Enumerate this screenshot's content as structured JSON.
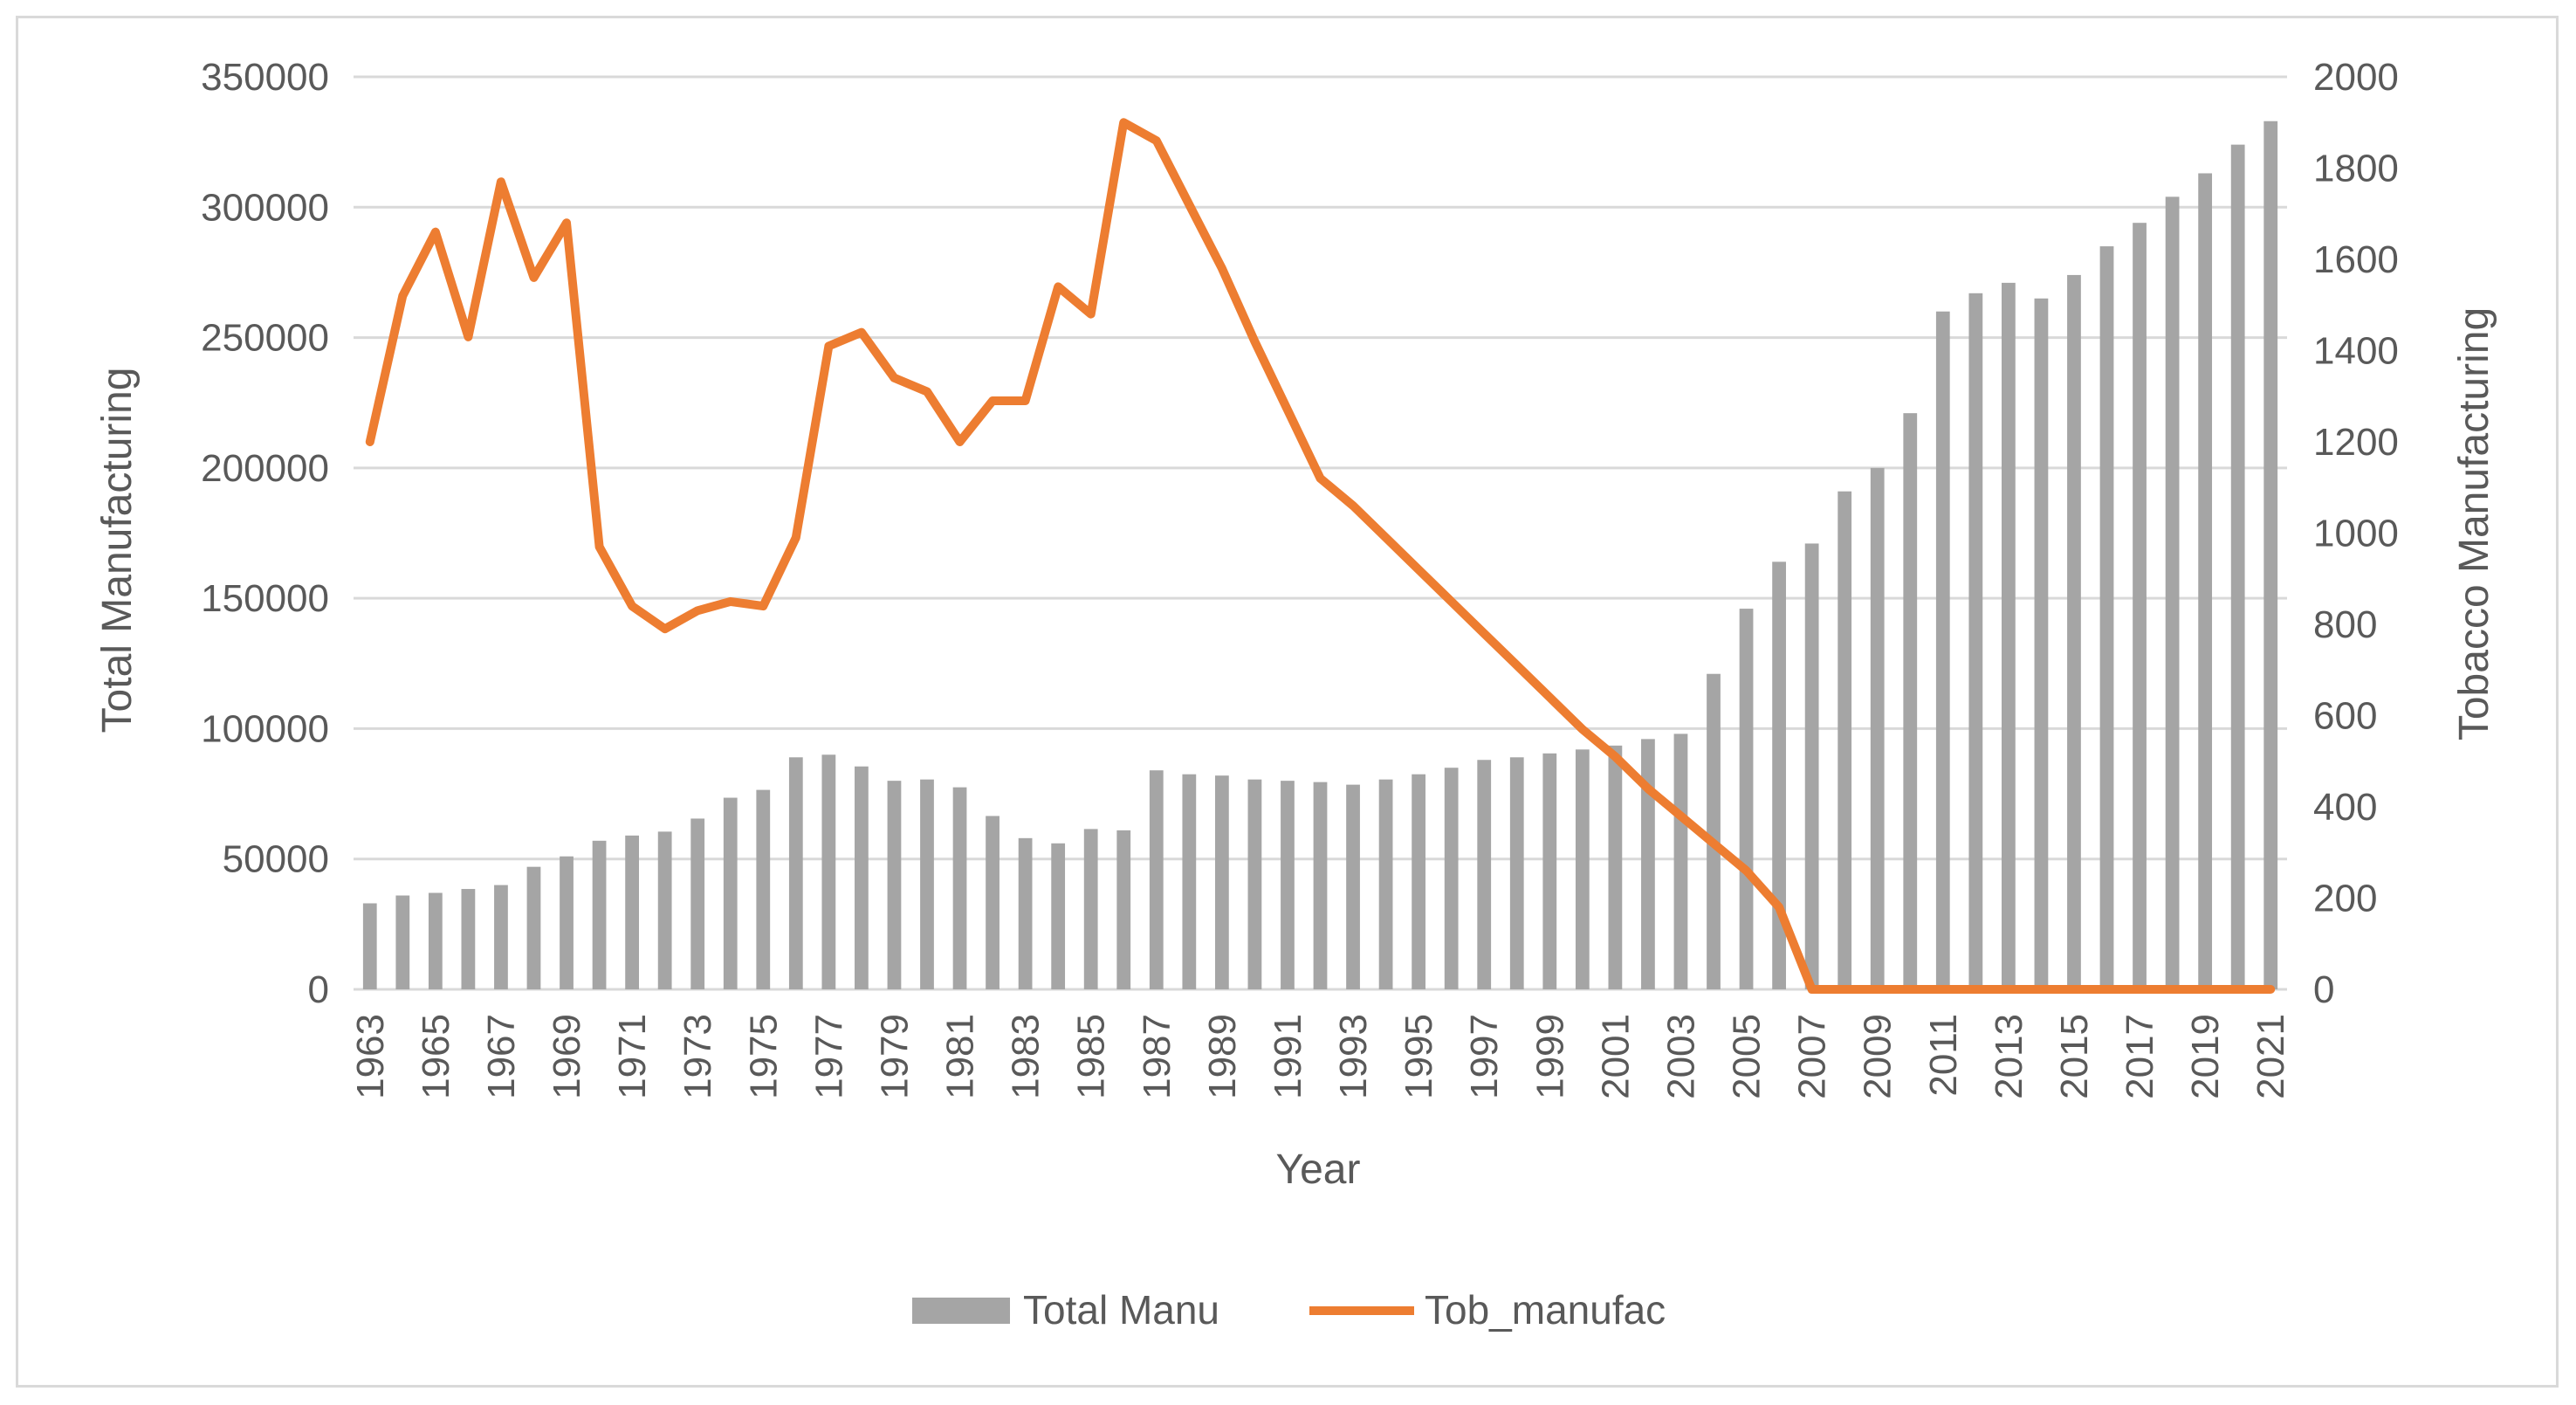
{
  "chart_data": {
    "type": "bar+line",
    "x": [
      1963,
      1964,
      1965,
      1966,
      1967,
      1968,
      1969,
      1970,
      1971,
      1972,
      1973,
      1974,
      1975,
      1976,
      1977,
      1978,
      1979,
      1980,
      1981,
      1982,
      1983,
      1984,
      1985,
      1986,
      1987,
      1988,
      1989,
      1990,
      1991,
      1992,
      1993,
      1994,
      1995,
      1996,
      1997,
      1998,
      1999,
      2000,
      2001,
      2002,
      2003,
      2004,
      2005,
      2006,
      2007,
      2008,
      2009,
      2010,
      2011,
      2012,
      2013,
      2014,
      2015,
      2016,
      2017,
      2018,
      2019,
      2020,
      2021
    ],
    "x_tick_labels": [
      "1963",
      "1965",
      "1967",
      "1969",
      "1971",
      "1973",
      "1975",
      "1977",
      "1979",
      "1981",
      "1983",
      "1985",
      "1987",
      "1989",
      "1991",
      "1993",
      "1995",
      "1997",
      "1999",
      "2001",
      "2003",
      "2005",
      "2007",
      "2009",
      "2011",
      "2013",
      "2015",
      "2017",
      "2019",
      "2021"
    ],
    "series": [
      {
        "name": "Total Manu",
        "type": "bar",
        "axis": "left",
        "color": "#a5a5a5",
        "values": [
          33000,
          36000,
          37000,
          38500,
          40000,
          47000,
          51000,
          57000,
          59000,
          60500,
          65500,
          73500,
          76500,
          89000,
          90000,
          85500,
          80000,
          80500,
          77500,
          66500,
          58000,
          56000,
          61500,
          61000,
          84000,
          82500,
          82000,
          80500,
          80000,
          79500,
          78500,
          80500,
          82500,
          85000,
          88000,
          89000,
          90500,
          92000,
          93500,
          96000,
          98000,
          121000,
          146000,
          164000,
          171000,
          191000,
          200000,
          221000,
          260000,
          267000,
          271000,
          265000,
          274000,
          285000,
          294000,
          304000,
          313000,
          324000,
          333000
        ]
      },
      {
        "name": "Tob_manufac",
        "type": "line",
        "axis": "right",
        "color": "#ed7d31",
        "values": [
          1200,
          1520,
          1660,
          1430,
          1770,
          1560,
          1680,
          970,
          840,
          790,
          830,
          850,
          840,
          990,
          1410,
          1440,
          1340,
          1310,
          1200,
          1290,
          1290,
          1540,
          1480,
          1900,
          1860,
          1720,
          1580,
          1420,
          1270,
          1120,
          1060,
          990,
          920,
          850,
          780,
          710,
          640,
          570,
          510,
          440,
          380,
          320,
          260,
          180,
          0,
          0,
          0,
          0,
          0,
          0,
          0,
          0,
          0,
          0,
          0,
          0,
          0,
          0,
          0
        ]
      }
    ],
    "y_left": {
      "label": "Total Manufacturing",
      "min": 0,
      "max": 350000,
      "ticks": [
        "350000",
        "300000",
        "250000",
        "200000",
        "150000",
        "100000",
        "50000",
        "0"
      ]
    },
    "y_right": {
      "label": "Tobacco Manufacturing",
      "min": 0,
      "max": 2000,
      "ticks": [
        "2000",
        "1800",
        "1600",
        "1400",
        "1200",
        "1000",
        "800",
        "600",
        "400",
        "200",
        "0"
      ]
    },
    "xlabel": "Year",
    "legend": {
      "position": "bottom",
      "entries": [
        "Total Manu",
        "Tob_manufac"
      ]
    },
    "grid": true
  }
}
